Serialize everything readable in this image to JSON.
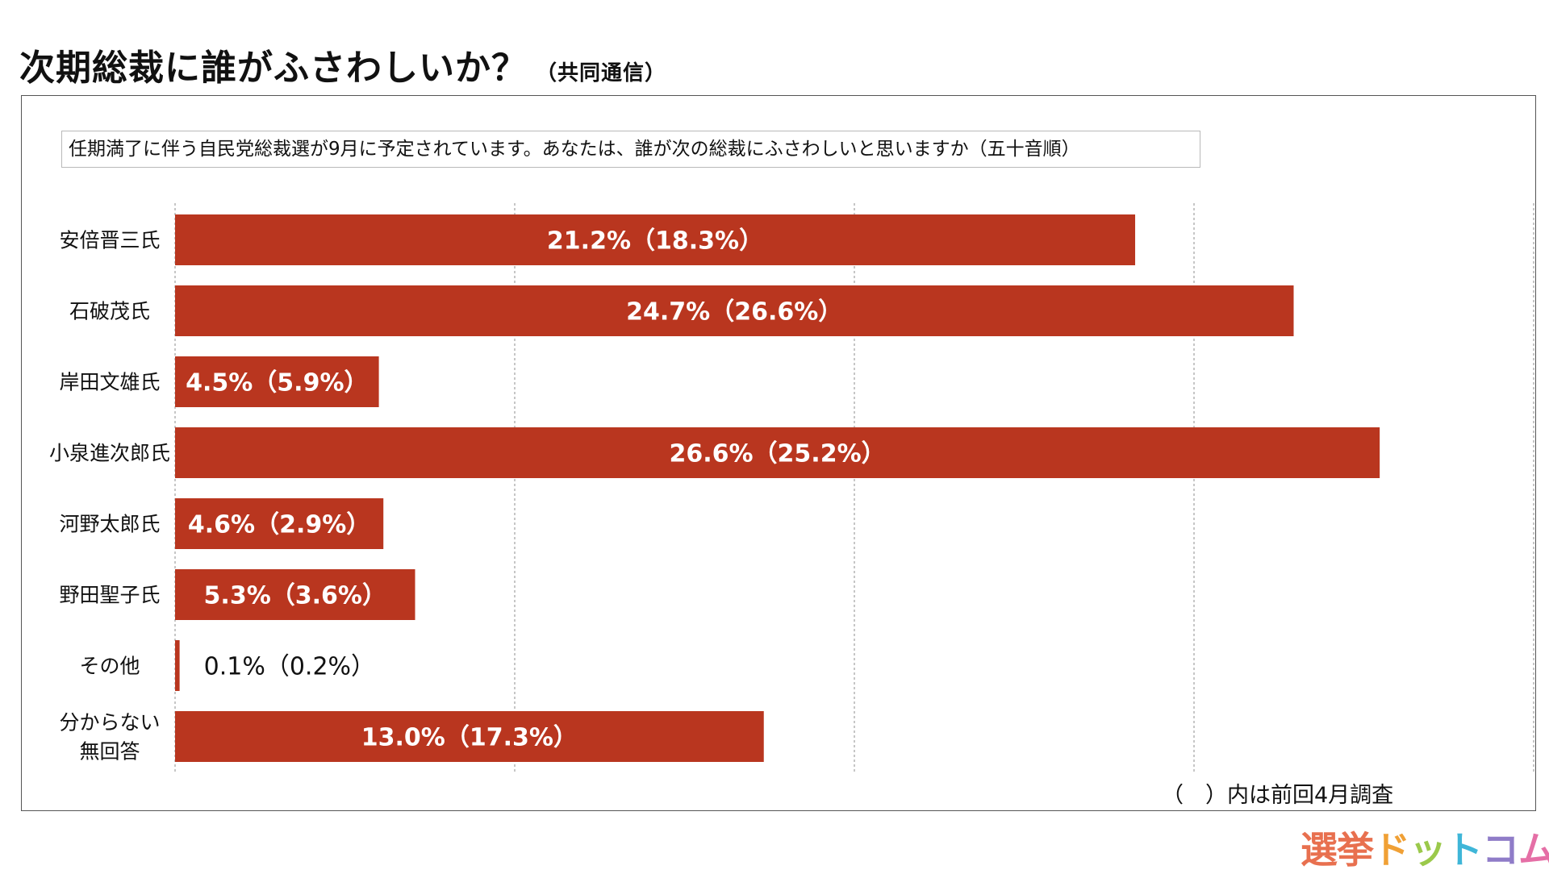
{
  "title": "次期総裁に誰がふさわしいか？",
  "source": "（共同通信）",
  "question": "任期満了に伴う自民党総裁選が9月に予定されています。あなたは、誰が次の総裁にふさわしいと思いますか（五十音順）",
  "note": "（　）内は前回4月調査",
  "logo": {
    "chars": [
      "選",
      "挙",
      "ド",
      "ッ",
      "ト",
      "コ",
      "ム"
    ],
    "colors": [
      "#e8704f",
      "#e8704f",
      "#f0a035",
      "#9bc94b",
      "#3fb6d8",
      "#8f7cc8",
      "#e56fa6"
    ]
  },
  "colors": {
    "bar": "#b9361f",
    "grid": "#a0a0a0"
  },
  "chart_data": {
    "type": "bar",
    "orientation": "horizontal",
    "categories": [
      "安倍晋三氏",
      "石破茂氏",
      "岸田文雄氏",
      "小泉進次郎氏",
      "河野太郎氏",
      "野田聖子氏",
      "その他",
      "分からない\n無回答"
    ],
    "values": [
      21.2,
      24.7,
      4.5,
      26.6,
      4.6,
      5.3,
      0.1,
      13.0
    ],
    "previous": [
      18.3,
      26.6,
      5.9,
      25.2,
      2.9,
      3.6,
      0.2,
      17.3
    ],
    "labels": [
      "21.2%（18.3%）",
      "24.7%（26.6%）",
      "4.5%（5.9%）",
      "26.6%（25.2%）",
      "4.6%（2.9%）",
      "5.3%（3.6%）",
      "0.1%（0.2%）",
      "13.0%（17.3%）"
    ],
    "xlim": [
      0,
      30
    ],
    "gridlines": [
      0,
      7.5,
      15,
      22.5,
      30
    ],
    "grid": true,
    "legend": "none"
  }
}
